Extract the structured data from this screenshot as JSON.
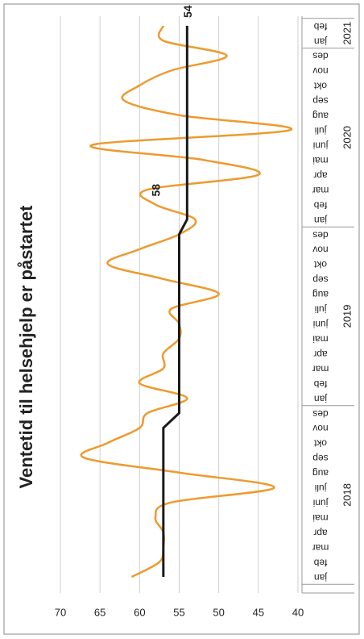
{
  "chart_data": {
    "type": "line",
    "title": "Ventetid til helsehjelp er påstartet",
    "categories": [
      "jan",
      "feb",
      "mar",
      "apr",
      "mai",
      "juni",
      "juli",
      "aug",
      "sep",
      "okt",
      "nov",
      "des",
      "jan",
      "feb",
      "mar",
      "apr",
      "mai",
      "juni",
      "juli",
      "aug",
      "sep",
      "okt",
      "nov",
      "des",
      "jan",
      "feb",
      "mar",
      "apr",
      "mai",
      "juni",
      "juli",
      "aug",
      "sep",
      "okt",
      "nov",
      "des",
      "jan",
      "feb"
    ],
    "years": [
      "2018",
      "2019",
      "2020",
      "2021"
    ],
    "series": [
      {
        "color": "#ee9a2e",
        "values": [
          61,
          57.5,
          57,
          57,
          58,
          56,
          43,
          55,
          67,
          64,
          60,
          59,
          54,
          60,
          57,
          57,
          55,
          55,
          56,
          50,
          57,
          64,
          60,
          55,
          53,
          58,
          59,
          45,
          52,
          66,
          41,
          55,
          62,
          60,
          56,
          49,
          57,
          57
        ]
      },
      {
        "color": "#1a1a1a",
        "values": [
          57,
          57,
          57,
          57,
          57,
          57,
          57,
          57,
          57,
          57,
          57,
          55,
          55,
          55,
          55,
          55,
          55,
          55,
          55,
          55,
          55,
          55,
          55,
          55,
          54,
          54,
          54,
          54,
          54,
          54,
          54,
          54,
          54,
          54,
          54,
          54,
          54,
          54
        ]
      }
    ],
    "point_labels": [
      {
        "series": 0,
        "index": 25
      },
      {
        "series": 1,
        "index": 37
      }
    ],
    "ylim": [
      40,
      70
    ],
    "yticks": [
      70,
      65,
      60,
      55,
      50,
      45,
      40
    ],
    "grid": true
  }
}
